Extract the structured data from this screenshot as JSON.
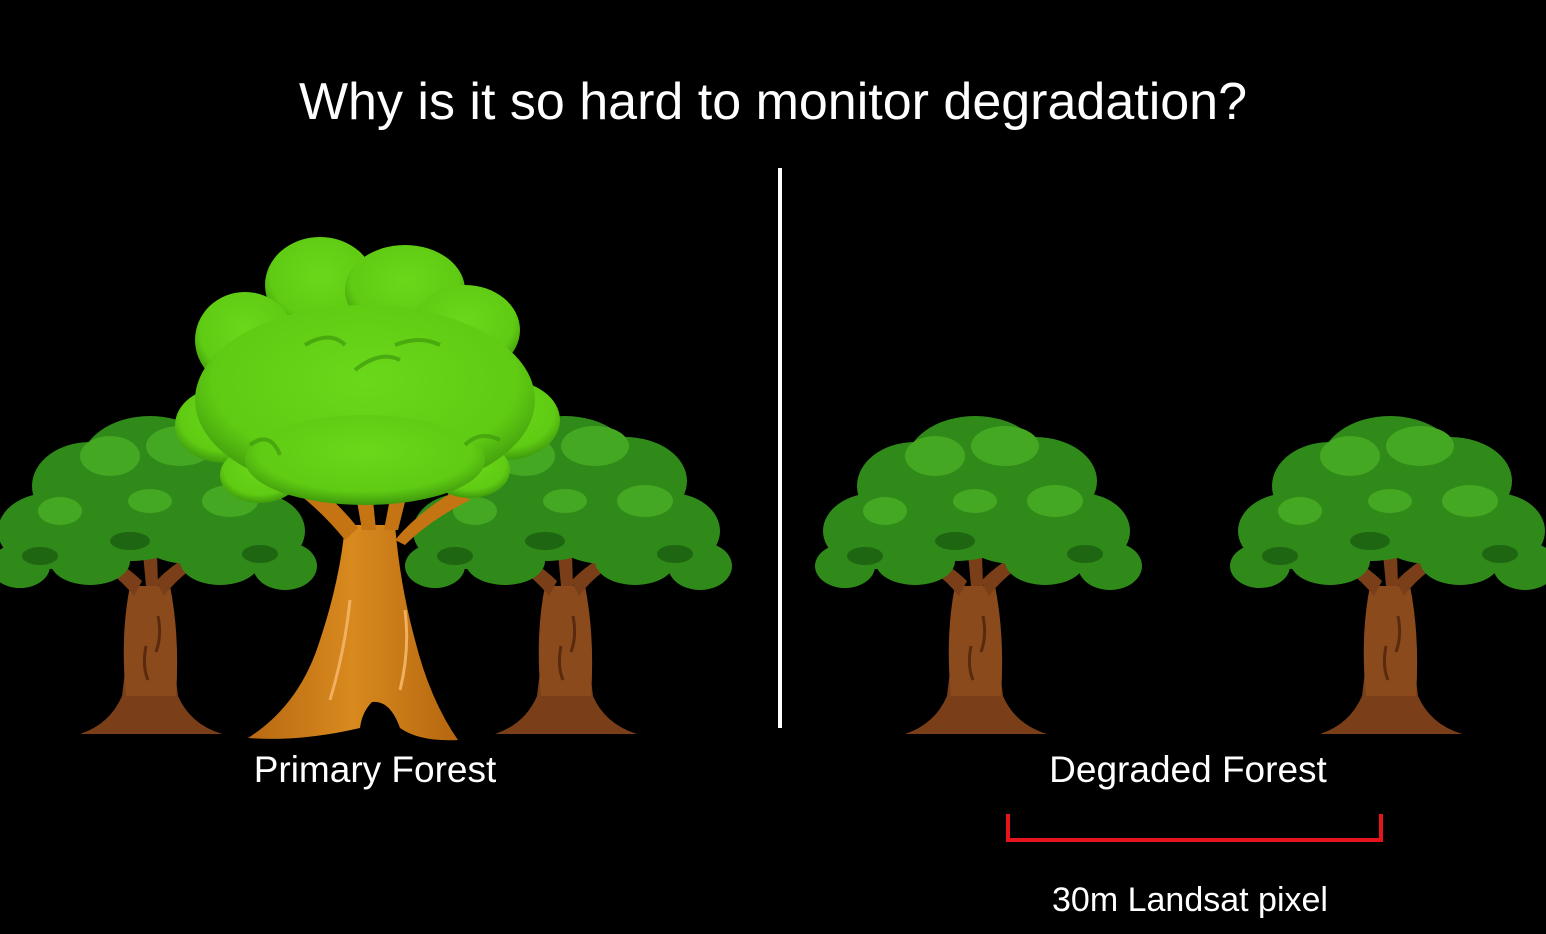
{
  "slide": {
    "title": "Why is it so hard to monitor degradation?"
  },
  "left_panel": {
    "label": "Primary Forest"
  },
  "right_panel": {
    "label": "Degraded Forest",
    "scale_label": "30m Landsat pixel"
  },
  "colors": {
    "background": "#000000",
    "text": "#ffffff",
    "divider": "#ffffff",
    "scale_bracket": "#e8141c",
    "canopy_big": "#5fcb13",
    "canopy_small": "#2f8a1a",
    "trunk_big": "#cc7a14",
    "trunk_small": "#7a3f18"
  },
  "icons": {
    "primary_forest": [
      "oak-tree-icon",
      "big-cartoon-tree-icon",
      "oak-tree-icon"
    ],
    "degraded_forest": [
      "oak-tree-icon",
      "oak-tree-icon"
    ]
  }
}
